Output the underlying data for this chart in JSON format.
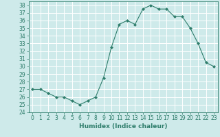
{
  "x": [
    0,
    1,
    2,
    3,
    4,
    5,
    6,
    7,
    8,
    9,
    10,
    11,
    12,
    13,
    14,
    15,
    16,
    17,
    18,
    19,
    20,
    21,
    22,
    23
  ],
  "y": [
    27,
    27,
    26.5,
    26,
    26,
    25.5,
    25,
    25.5,
    26,
    28.5,
    32.5,
    35.5,
    36,
    35.5,
    37.5,
    38,
    37.5,
    37.5,
    36.5,
    36.5,
    35,
    33,
    30.5,
    30
  ],
  "line_color": "#2e7d6b",
  "marker_color": "#2e7d6b",
  "bg_color": "#ceeaea",
  "grid_color": "#ffffff",
  "xlabel": "Humidex (Indice chaleur)",
  "ylim": [
    24,
    38.5
  ],
  "xlim": [
    -0.5,
    23.5
  ],
  "yticks": [
    24,
    25,
    26,
    27,
    28,
    29,
    30,
    31,
    32,
    33,
    34,
    35,
    36,
    37,
    38
  ],
  "xticks": [
    0,
    1,
    2,
    3,
    4,
    5,
    6,
    7,
    8,
    9,
    10,
    11,
    12,
    13,
    14,
    15,
    16,
    17,
    18,
    19,
    20,
    21,
    22,
    23
  ],
  "tick_fontsize": 5.5,
  "label_fontsize": 6.5
}
